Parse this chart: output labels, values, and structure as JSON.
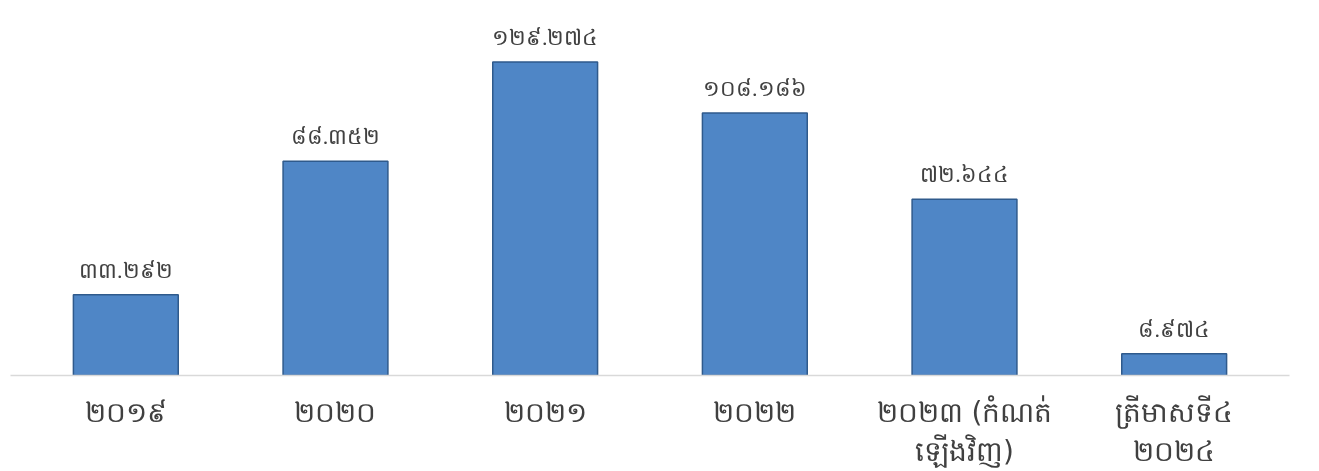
{
  "chart_data": {
    "type": "bar",
    "categories": [
      "២០១៩",
      "២០២០",
      "២០២១",
      "២០២២",
      "២០២៣ (កំណត់\nឡើងវិញ)",
      "ត្រីមាសទី៤\n២០២៤"
    ],
    "values": [
      33.292,
      88.352,
      129.274,
      108.186,
      72.644,
      8.974
    ],
    "value_labels": [
      "៣៣.២៩២",
      "៨៨.៣៥២",
      "១២៩.២៧៤",
      "១០៨.១៨៦",
      "៧២.៦៤៤",
      "៨.៩៧៤"
    ],
    "color": "#4f86c6",
    "grid": false
  }
}
